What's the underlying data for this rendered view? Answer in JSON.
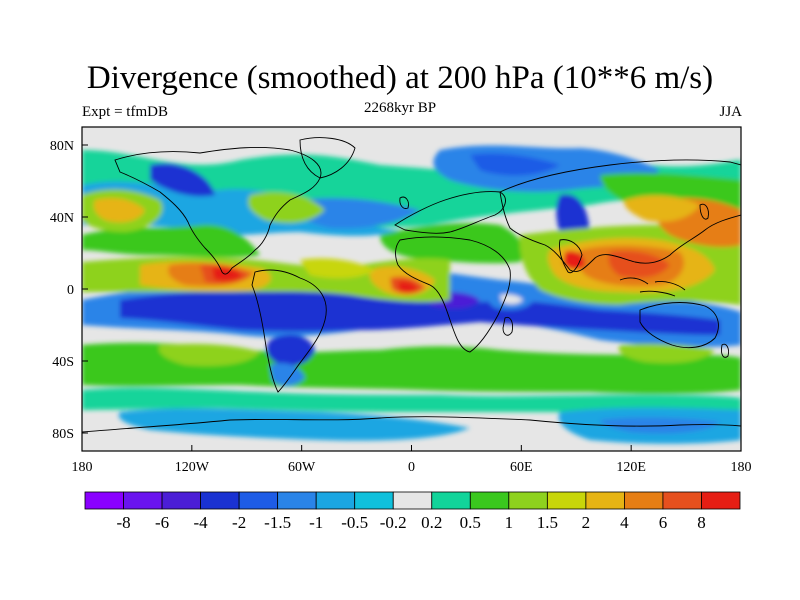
{
  "title": "Divergence (smoothed) at 200 hPa (10**6 m/s)",
  "left_label": "Expt = tfmDB",
  "center_label": "2268kyr BP",
  "right_label": "JJA",
  "chart_data": {
    "type": "heatmap",
    "projection": "cylindrical-equidistant",
    "lon_range": [
      -180,
      180
    ],
    "lat_range": [
      -90,
      90
    ],
    "x_ticks": [
      {
        "value": -180,
        "label": "180"
      },
      {
        "value": -120,
        "label": "120W"
      },
      {
        "value": -60,
        "label": "60W"
      },
      {
        "value": 0,
        "label": "0"
      },
      {
        "value": 60,
        "label": "60E"
      },
      {
        "value": 120,
        "label": "120E"
      },
      {
        "value": 180,
        "label": "180"
      }
    ],
    "y_ticks": [
      {
        "value": 80,
        "label": "80N"
      },
      {
        "value": 40,
        "label": "40N"
      },
      {
        "value": 0,
        "label": "0"
      },
      {
        "value": -40,
        "label": "40S"
      },
      {
        "value": -80,
        "label": "80S"
      }
    ],
    "colorbar": {
      "levels": [
        "-8",
        "-6",
        "-4",
        "-2",
        "-1.5",
        "-1",
        "-0.5",
        "-0.2",
        "0.2",
        "0.5",
        "1",
        "1.5",
        "2",
        "4",
        "6",
        "8"
      ],
      "colors": [
        "#8a00ff",
        "#6a14ee",
        "#4b1ed6",
        "#1a32d2",
        "#1e5ce6",
        "#2a84e8",
        "#1aa6e2",
        "#10c0dc",
        "#e6e6e6",
        "#12d49a",
        "#3ac81e",
        "#8ed21e",
        "#c8d60a",
        "#e6b414",
        "#e67e14",
        "#e6501e",
        "#e61e14"
      ]
    },
    "features": [
      {
        "name": "tropical-convergence-pacific",
        "sign": "negative",
        "value": -4,
        "lon": -130,
        "lat": -10,
        "rx": 45,
        "ry": 12
      },
      {
        "name": "tropical-convergence-atlantic",
        "sign": "negative",
        "value": -2,
        "lon": -30,
        "lat": -10,
        "rx": 30,
        "ry": 10
      },
      {
        "name": "equatorial-divergence-eastpacific",
        "sign": "positive",
        "value": 6,
        "lon": -100,
        "lat": 7,
        "rx": 30,
        "ry": 7
      },
      {
        "name": "equatorial-divergence-atlantic",
        "sign": "positive",
        "value": 6,
        "lon": 0,
        "lat": 0,
        "rx": 12,
        "ry": 6
      },
      {
        "name": "maritime-continent-divergence",
        "sign": "positive",
        "value": 6,
        "lon": 125,
        "lat": 8,
        "rx": 25,
        "ry": 12
      },
      {
        "name": "bay-of-bengal-divergence",
        "sign": "positive",
        "value": 6,
        "lon": 88,
        "lat": 12,
        "rx": 8,
        "ry": 6
      },
      {
        "name": "southern-ocean-convergence",
        "sign": "negative",
        "value": -1,
        "lon": 30,
        "lat": -78,
        "rx": 120,
        "ry": 6
      },
      {
        "name": "north-pacific-divergence",
        "sign": "positive",
        "value": 2,
        "lon": -158,
        "lat": 42,
        "rx": 15,
        "ry": 10
      },
      {
        "name": "east-asia-divergence",
        "sign": "positive",
        "value": 4,
        "lon": 150,
        "lat": 35,
        "rx": 25,
        "ry": 12
      }
    ]
  }
}
